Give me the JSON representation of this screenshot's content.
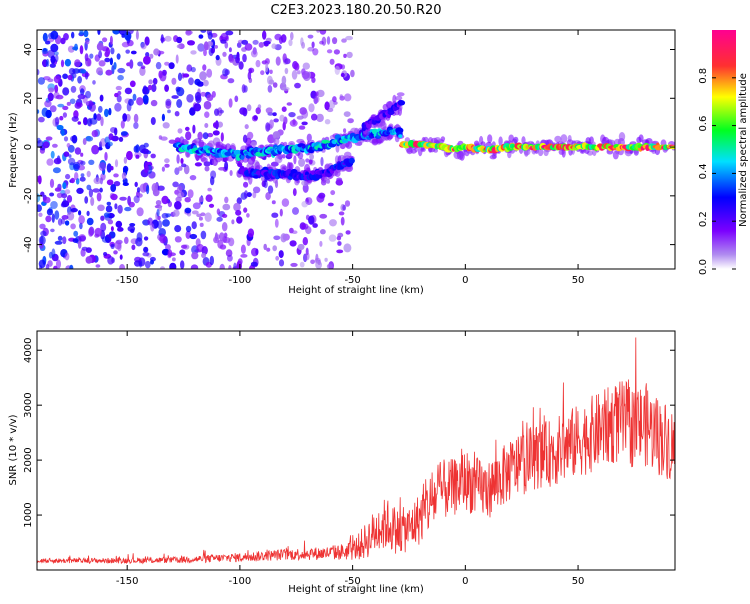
{
  "title": "C2E3.2023.180.20.50.R20",
  "chart_data": [
    {
      "type": "heatmap",
      "title": "C2E3.2023.180.20.50.R20",
      "xlabel": "Height of straight line (km)",
      "ylabel": "Frequency (Hz)",
      "xlim": [
        -190,
        93
      ],
      "ylim": [
        -50,
        48
      ],
      "xticks": [
        -150,
        -100,
        -50,
        0,
        50
      ],
      "yticks": [
        -40,
        -20,
        0,
        20,
        40
      ],
      "grid": false,
      "colorbar": {
        "label": "Normalized spectral amplitude",
        "range": [
          0.0,
          1.0
        ],
        "ticks": [
          0.0,
          0.2,
          0.4,
          0.6,
          0.8
        ],
        "colormap": [
          "#ffffff",
          "#b08cf0",
          "#7b00ff",
          "#0000ff",
          "#00e0ff",
          "#00ff20",
          "#ffff00",
          "#ff3030",
          "#ff0090"
        ]
      },
      "features": [
        {
          "name": "noise-field",
          "x_range": [
            -190,
            -50
          ],
          "y_range": [
            -50,
            48
          ],
          "amplitude": 0.35
        },
        {
          "name": "main-band-low",
          "x": [
            -128,
            -100,
            -80,
            -65,
            -50,
            -35,
            -28
          ],
          "y": [
            0,
            -3,
            -1,
            0,
            4,
            6,
            6
          ],
          "amplitude": 0.45
        },
        {
          "name": "lower-branch",
          "x": [
            -100,
            -85,
            -70,
            -60,
            -50
          ],
          "y": [
            -10,
            -11,
            -12,
            -10,
            -5
          ],
          "amplitude": 0.3
        },
        {
          "name": "upper-branch",
          "x": [
            -45,
            -35,
            -28
          ],
          "y": [
            8,
            14,
            18
          ],
          "amplitude": 0.25
        },
        {
          "name": "main-band-high",
          "x": [
            -28,
            -15,
            -5,
            0,
            10,
            20,
            50,
            70,
            93
          ],
          "y": [
            1,
            1,
            -1,
            0,
            -1,
            0,
            0,
            0,
            0
          ],
          "amplitude": 0.85
        }
      ]
    },
    {
      "type": "line",
      "xlabel": "Height of straight line (km)",
      "ylabel": "SNR (10 * v/v)",
      "xlim": [
        -190,
        93
      ],
      "ylim": [
        0,
        4350
      ],
      "xticks": [
        -150,
        -100,
        -50,
        0,
        50
      ],
      "yticks": [
        1000,
        2000,
        3000,
        4000
      ],
      "grid": false,
      "series": [
        {
          "color": "#ee3333",
          "x": [
            -190,
            -160,
            -130,
            -100,
            -80,
            -60,
            -50,
            -45,
            -40,
            -35,
            -30,
            -25,
            -20,
            -15,
            -10,
            -5,
            0,
            5,
            10,
            15,
            20,
            25,
            30,
            35,
            40,
            45,
            50,
            55,
            60,
            65,
            70,
            75,
            80,
            85,
            90,
            93
          ],
          "values": [
            170,
            170,
            180,
            230,
            280,
            310,
            350,
            500,
            700,
            850,
            700,
            750,
            950,
            1250,
            1450,
            1500,
            1650,
            1500,
            1450,
            1650,
            1800,
            1950,
            2050,
            2100,
            2150,
            2250,
            2350,
            2450,
            2550,
            2650,
            2700,
            2600,
            2650,
            2450,
            2350,
            2200
          ],
          "spread": [
            60,
            70,
            80,
            120,
            150,
            180,
            250,
            450,
            600,
            700,
            600,
            600,
            700,
            800,
            800,
            750,
            800,
            800,
            750,
            800,
            800,
            850,
            850,
            850,
            900,
            950,
            950,
            1000,
            1000,
            1050,
            1100,
            1100,
            1100,
            1050,
            1000,
            1000
          ]
        }
      ]
    }
  ]
}
